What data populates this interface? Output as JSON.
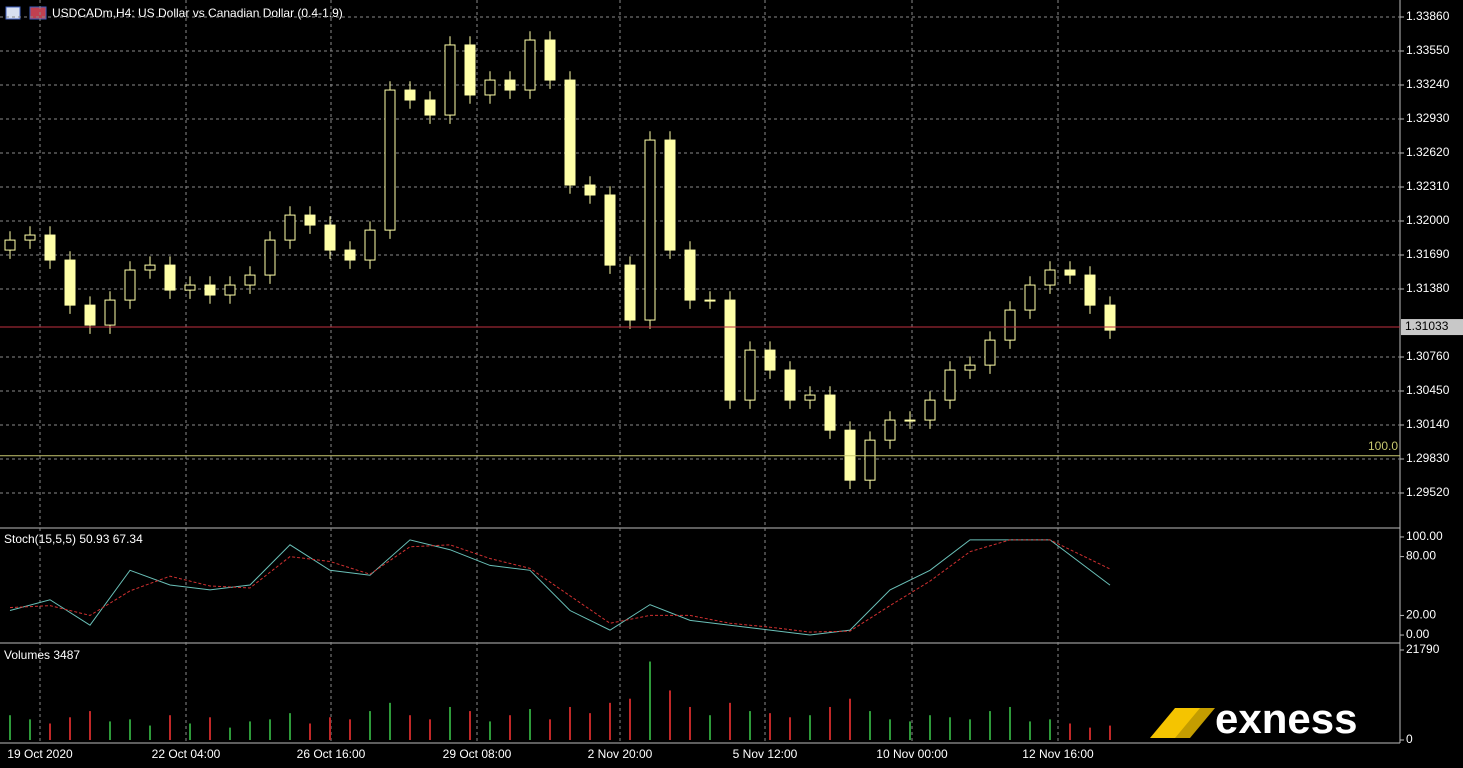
{
  "window": {
    "title": "USDCADm,H4:  US Dollar vs Canadian Dollar (0.4-1.9)"
  },
  "logo": "exness",
  "chart_data": [
    {
      "type": "candlestick",
      "x": [
        0,
        1,
        2,
        3,
        4,
        5,
        6,
        7,
        8,
        9,
        10,
        11,
        12,
        13,
        14,
        15,
        16,
        17,
        18,
        19,
        20,
        21,
        22,
        23,
        24,
        25,
        26,
        27,
        28,
        29,
        30,
        31,
        32,
        33,
        34,
        35,
        36,
        37,
        38,
        39,
        40,
        41,
        42,
        43,
        44,
        45,
        46,
        47,
        48,
        49,
        50,
        51,
        52,
        53,
        54,
        55
      ],
      "open": [
        1.31735,
        1.31826,
        1.31872,
        1.31644,
        1.31233,
        1.31051,
        1.31279,
        1.31553,
        1.31598,
        1.3137,
        1.31416,
        1.31325,
        1.31416,
        1.31507,
        1.31826,
        1.32054,
        1.31963,
        1.31735,
        1.31644,
        1.31917,
        1.33194,
        1.33103,
        1.32966,
        1.33605,
        1.33149,
        1.33285,
        1.33194,
        1.3365,
        1.33285,
        1.32328,
        1.32237,
        1.31598,
        1.31097,
        1.32738,
        1.31735,
        1.31279,
        1.31279,
        1.30367,
        1.30823,
        1.30641,
        1.30367,
        1.30413,
        1.30093,
        1.29637,
        1.30002,
        1.30185,
        1.30185,
        1.30367,
        1.30641,
        1.30686,
        1.30914,
        1.31188,
        1.31416,
        1.31553,
        1.31507,
        1.31233
      ],
      "high": [
        1.31906,
        1.31952,
        1.31952,
        1.31724,
        1.31313,
        1.31359,
        1.31633,
        1.31678,
        1.31678,
        1.31496,
        1.31496,
        1.31496,
        1.31587,
        1.31906,
        1.32134,
        1.32134,
        1.32043,
        1.31815,
        1.31997,
        1.33274,
        1.33274,
        1.33183,
        1.33685,
        1.33685,
        1.33365,
        1.33365,
        1.3373,
        1.3373,
        1.33365,
        1.32408,
        1.32317,
        1.31678,
        1.32818,
        1.32818,
        1.31815,
        1.31359,
        1.31359,
        1.30903,
        1.30903,
        1.30721,
        1.30493,
        1.30493,
        1.30173,
        1.30082,
        1.30265,
        1.30265,
        1.30447,
        1.30721,
        1.30766,
        1.30994,
        1.31268,
        1.31496,
        1.31633,
        1.31633,
        1.31587,
        1.31313
      ],
      "low": [
        1.31655,
        1.31746,
        1.31564,
        1.31153,
        1.30971,
        1.30971,
        1.31199,
        1.31473,
        1.3129,
        1.3129,
        1.31245,
        1.31245,
        1.31336,
        1.31427,
        1.31746,
        1.31883,
        1.31655,
        1.31564,
        1.31564,
        1.31837,
        1.33023,
        1.32886,
        1.32886,
        1.33069,
        1.33069,
        1.33114,
        1.33114,
        1.33205,
        1.32248,
        1.32157,
        1.31518,
        1.31017,
        1.31017,
        1.31655,
        1.31199,
        1.31199,
        1.30287,
        1.30287,
        1.30561,
        1.30287,
        1.30287,
        1.30013,
        1.29557,
        1.29557,
        1.29922,
        1.30105,
        1.30105,
        1.30287,
        1.30561,
        1.30606,
        1.30834,
        1.31108,
        1.31336,
        1.31427,
        1.31153,
        1.30925
      ],
      "close": [
        1.31826,
        1.31872,
        1.31644,
        1.31233,
        1.31051,
        1.31279,
        1.31553,
        1.31598,
        1.3137,
        1.31416,
        1.31325,
        1.31416,
        1.31507,
        1.31826,
        1.32054,
        1.31963,
        1.31735,
        1.31644,
        1.31917,
        1.33194,
        1.33103,
        1.32966,
        1.33605,
        1.33149,
        1.33285,
        1.33194,
        1.3365,
        1.33285,
        1.32328,
        1.32237,
        1.31598,
        1.31097,
        1.32738,
        1.31735,
        1.31279,
        1.31279,
        1.30367,
        1.30823,
        1.30641,
        1.30367,
        1.30413,
        1.30093,
        1.29637,
        1.30002,
        1.30185,
        1.30185,
        1.30367,
        1.30641,
        1.30686,
        1.30914,
        1.31188,
        1.31416,
        1.31553,
        1.31507,
        1.31233,
        1.31005
      ],
      "color": "#ffffa8",
      "xlim": [
        -0.5,
        69.5
      ],
      "ylim": [
        1.2921,
        1.34015
      ],
      "yticks": [
        {
          "value": 1.3386,
          "label": "1.33860"
        },
        {
          "value": 1.3355,
          "label": "1.33550"
        },
        {
          "value": 1.3324,
          "label": "1.33240"
        },
        {
          "value": 1.3293,
          "label": "1.32930"
        },
        {
          "value": 1.3262,
          "label": "1.32620"
        },
        {
          "value": 1.3231,
          "label": "1.32310"
        },
        {
          "value": 1.32,
          "label": "1.32000"
        },
        {
          "value": 1.3169,
          "label": "1.31690"
        },
        {
          "value": 1.3138,
          "label": "1.31380"
        },
        {
          "value": 1.3076,
          "label": "1.30760"
        },
        {
          "value": 1.3045,
          "label": "1.30450"
        },
        {
          "value": 1.3014,
          "label": "1.30140"
        },
        {
          "value": 1.2983,
          "label": "1.29830"
        },
        {
          "value": 1.2952,
          "label": "1.29520"
        }
      ],
      "xticks": [
        {
          "value": 1.5,
          "label": "19 Oct 2020"
        },
        {
          "value": 8.8,
          "label": "22 Oct 04:00"
        },
        {
          "value": 16.05,
          "label": "26 Oct 16:00"
        },
        {
          "value": 23.35,
          "label": "29 Oct 08:00"
        },
        {
          "value": 30.5,
          "label": "2 Nov 20:00"
        },
        {
          "value": 37.75,
          "label": "5 Nov 12:00"
        },
        {
          "value": 45.1,
          "label": "10 Nov 00:00"
        },
        {
          "value": 52.4,
          "label": "12 Nov 16:00"
        }
      ],
      "current_price": 1.31033,
      "current_price_color": "#c03040",
      "level_line": {
        "value": 1.2986,
        "label": "100.0",
        "color": "#c8c870"
      },
      "grid": true
    },
    {
      "type": "line",
      "title": "Stoch(15,5,5) 50.93 67.34",
      "x": [
        0,
        2,
        4,
        6,
        8,
        10,
        12,
        14,
        16,
        18,
        20,
        22,
        24,
        26,
        28,
        30,
        32,
        34,
        36,
        38,
        40,
        42,
        44,
        46,
        48,
        50,
        52,
        55
      ],
      "series": [
        {
          "color": "#6ac0b8",
          "dash": false,
          "values": [
            25,
            36,
            10,
            66,
            51,
            46,
            51,
            92,
            66,
            61,
            97,
            87,
            71,
            66,
            25,
            5,
            31,
            15,
            10,
            5,
            0,
            5,
            46,
            66,
            97,
            97,
            97,
            50.93
          ]
        },
        {
          "color": "#d03030",
          "dash": true,
          "values": [
            28,
            30,
            20,
            45,
            60,
            50,
            48,
            80,
            75,
            62,
            90,
            92,
            78,
            68,
            40,
            12,
            20,
            20,
            12,
            8,
            3,
            4,
            30,
            55,
            85,
            97,
            97,
            67.34
          ]
        }
      ],
      "ylim": [
        -7.1,
        107.1
      ],
      "yticks": [
        {
          "value": 100,
          "label": "100.00"
        },
        {
          "value": 80,
          "label": "80.00"
        },
        {
          "value": 20,
          "label": "20.00"
        },
        {
          "value": 0,
          "label": "0.00"
        }
      ]
    },
    {
      "type": "bar",
      "title": "Volumes 3487",
      "x": [
        0,
        1,
        2,
        3,
        4,
        5,
        6,
        7,
        8,
        9,
        10,
        11,
        12,
        13,
        14,
        15,
        16,
        17,
        18,
        19,
        20,
        21,
        22,
        23,
        24,
        25,
        26,
        27,
        28,
        29,
        30,
        31,
        32,
        33,
        34,
        35,
        36,
        37,
        38,
        39,
        40,
        41,
        42,
        43,
        44,
        45,
        46,
        47,
        48,
        49,
        50,
        51,
        52,
        53,
        54,
        55
      ],
      "values": [
        6000,
        5000,
        4000,
        5500,
        7000,
        4500,
        5000,
        3500,
        6000,
        4000,
        5500,
        3000,
        4500,
        5000,
        6500,
        4000,
        5500,
        5000,
        7000,
        9000,
        6000,
        5000,
        8000,
        7000,
        4500,
        6000,
        7500,
        5000,
        8000,
        6500,
        9000,
        10000,
        19000,
        12000,
        8000,
        6000,
        9000,
        7000,
        6500,
        5500,
        6000,
        8000,
        10000,
        7000,
        5000,
        4500,
        6000,
        5500,
        5000,
        7000,
        8000,
        4500,
        5000,
        4000,
        3000,
        3487
      ],
      "up_color": "#2e9a3a",
      "down_color": "#c02828",
      "ylim": [
        0,
        21790
      ],
      "yticks": [
        21790,
        0
      ]
    }
  ]
}
